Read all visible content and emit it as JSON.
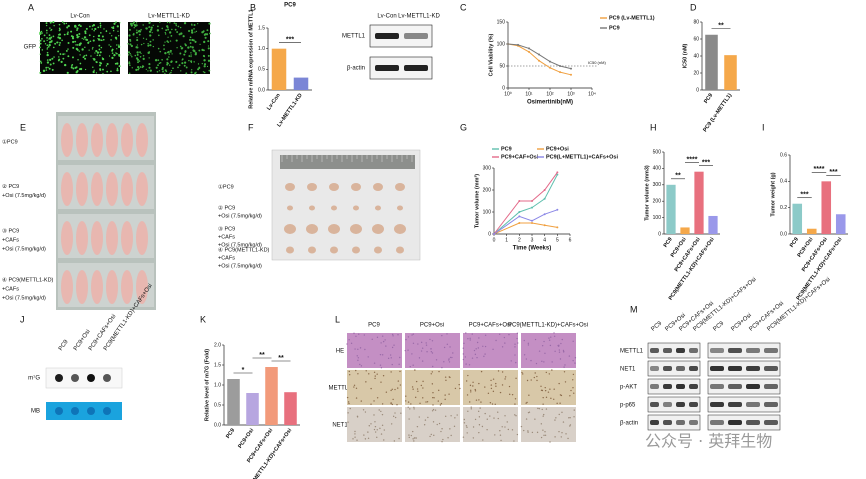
{
  "panel_labels": [
    "A",
    "B",
    "C",
    "D",
    "E",
    "F",
    "G",
    "H",
    "I",
    "J",
    "K",
    "L",
    "M"
  ],
  "panel_a": {
    "columns": [
      "Lv-Con",
      "Lv-METTL1-KD"
    ],
    "row": "GFP"
  },
  "panel_b_blot": {
    "columns": [
      "Lv-Con",
      "Lv-METTL1-KD"
    ],
    "rows": [
      "METTL1",
      "β-actin"
    ]
  },
  "panel_e": {
    "groups": [
      [
        "①PC9"
      ],
      [
        "② PC9",
        "+Osi (7.5mg/kg/d)"
      ],
      [
        "③ PC9",
        "+CAFs",
        "+Osi (7.5mg/kg/d)"
      ],
      [
        "④ PC9(METTL1-KD)",
        "+CAFs",
        "+Osi (7.5mg/kg/d)"
      ]
    ]
  },
  "panel_f": {
    "groups": [
      [
        "①PC9"
      ],
      [
        "② PC9",
        "+Osi (7.5mg/kg/d)"
      ],
      [
        "③ PC9",
        "+CAFs",
        "+Osi (7.5mg/kg/d)"
      ],
      [
        "④ PC9(METTL1-KD)",
        "+CAFs",
        "+Osi (7.5mg/kg/d)"
      ]
    ]
  },
  "panel_j": {
    "columns": [
      "PC9",
      "PC9+Osi",
      "PC9+CAFs+Osi",
      "PC9(METTL1-KD)+CAFs+Osi"
    ],
    "rows": [
      "m⁷G",
      "MB"
    ]
  },
  "panel_l": {
    "columns": [
      "PC9",
      "PC9+Osi",
      "PC9+CAFs+Osi",
      "PC9(METTL1-KD)+CAFs+Osi"
    ],
    "rows": [
      "HE",
      "METTL1",
      "NET1"
    ]
  },
  "panel_m": {
    "columns": [
      "PC9",
      "PC9+Osi",
      "PC9+CAFs+Osi",
      "PC9(METTL1-KD)+CAFs+Osi"
    ],
    "rows": [
      "METTL1",
      "NET1",
      "p-AKT",
      "p-p65",
      "β-actin"
    ]
  },
  "watermark": "公众号 · 英拜生物",
  "chart_data": [
    {
      "type": "bar",
      "title": "PC9",
      "ylabel": "Relative mRNA expression of METTL1",
      "categories": [
        "Lv-Con",
        "Lv-METTL1-KD"
      ],
      "values": [
        1.0,
        0.3
      ],
      "colors": [
        "#f5a84a",
        "#7b86d6"
      ],
      "ylim": [
        0,
        1.5
      ],
      "yticks": [
        {
          "value": 0,
          "label": "0.0"
        },
        {
          "value": 0.5,
          "label": "0.5"
        },
        {
          "value": 1,
          "label": "1.0"
        },
        {
          "value": 1.5,
          "label": "1.5"
        }
      ],
      "significance": [
        "***"
      ]
    },
    {
      "type": "line",
      "xlabel": "Osimertinib(nM)",
      "ylabel": "Cell Viability (%)",
      "x": [
        1,
        3,
        10,
        30,
        100,
        300,
        1000
      ],
      "log_x": true,
      "series": [
        {
          "name": "PC9 (Lv-METTL1)",
          "color": "#f0a040",
          "values": [
            100,
            96,
            82,
            62,
            46,
            36,
            30
          ]
        },
        {
          "name": "PC9",
          "color": "#777777",
          "values": [
            100,
            98,
            90,
            76,
            60,
            50,
            44
          ]
        }
      ],
      "xlim": [
        1,
        10000
      ],
      "xticks": [
        {
          "value": 1,
          "label": "10⁰"
        },
        {
          "value": 10,
          "label": "10¹"
        },
        {
          "value": 100,
          "label": "10²"
        },
        {
          "value": 1000,
          "label": "10³"
        },
        {
          "value": 10000,
          "label": "10⁴"
        }
      ],
      "ylim": [
        0,
        150
      ],
      "yticks": [
        0,
        50,
        100,
        150
      ],
      "reference_line": {
        "value": 50,
        "label": "IC50 (nM)"
      }
    },
    {
      "type": "bar",
      "ylabel": "IC50 (nM)",
      "categories": [
        "PC9",
        "PC9 (Lv-METTL1)"
      ],
      "values": [
        65,
        41
      ],
      "colors": [
        "#8a8a8a",
        "#f5a84a"
      ],
      "ylim": [
        0,
        80
      ],
      "yticks": [
        0,
        20,
        40,
        60,
        80
      ],
      "significance": [
        "**"
      ]
    },
    {
      "type": "line",
      "xlabel": "Time (Weeks)",
      "ylabel": "Tumor volume (mm³)",
      "x": [
        0,
        2,
        3,
        4,
        5
      ],
      "series": [
        {
          "name": "PC9",
          "color": "#5fbfae",
          "values": [
            0,
            100,
            120,
            160,
            270
          ]
        },
        {
          "name": "PC9+Osi",
          "color": "#f0a040",
          "values": [
            0,
            50,
            50,
            40,
            30
          ]
        },
        {
          "name": "PC9+CAF+Osi",
          "color": "#e36a8a",
          "values": [
            0,
            150,
            150,
            200,
            280
          ]
        },
        {
          "name": "PC9(L+METTL1)+CAFs+Osi",
          "color": "#8a86e6",
          "values": [
            0,
            80,
            60,
            90,
            110
          ]
        }
      ],
      "xlim": [
        0,
        6
      ],
      "xticks": [
        0,
        1,
        2,
        3,
        4,
        5,
        6
      ],
      "ylim": [
        0,
        300
      ],
      "yticks": [
        0,
        100,
        200,
        300
      ]
    },
    {
      "type": "bar",
      "ylabel": "Tumor volume (mm3)",
      "categories": [
        "PC9",
        "PC9+Osi",
        "PC9+CAFs+Osi",
        "PC9(METTL1-KD)+CAFs+Osi"
      ],
      "values": [
        300,
        40,
        380,
        110
      ],
      "colors": [
        "#8ccac8",
        "#f5a84a",
        "#e8707e",
        "#9a98ea"
      ],
      "ylim": [
        0,
        500
      ],
      "yticks": [
        0,
        100,
        200,
        300,
        400,
        500
      ],
      "significance": [
        "**",
        "****",
        "***"
      ]
    },
    {
      "type": "bar",
      "ylabel": "Tumor weight (g)",
      "categories": [
        "PC9",
        "PC9+Osi",
        "PC9+CAFs+Osi",
        "PC9(METTL1-KD)+CAFs+Osi"
      ],
      "values": [
        0.23,
        0.04,
        0.4,
        0.15
      ],
      "colors": [
        "#8ccac8",
        "#f5a84a",
        "#e8707e",
        "#9a98ea"
      ],
      "ylim": [
        0,
        0.6
      ],
      "yticks": [
        {
          "value": 0,
          "label": "0.0"
        },
        {
          "value": 0.2,
          "label": "0.2"
        },
        {
          "value": 0.4,
          "label": "0.4"
        },
        {
          "value": 0.6,
          "label": "0.6"
        }
      ],
      "significance": [
        "***",
        "****",
        "***"
      ]
    },
    {
      "type": "bar",
      "ylabel": "Relative level of m7G (Fold)",
      "categories": [
        "PC9",
        "PC9+Osi",
        "PC9+CAFs+Osi",
        "PC9(METTL1-KD)+CAFs+Osi"
      ],
      "values": [
        1.15,
        0.8,
        1.45,
        0.82
      ],
      "colors": [
        "#9c9c9c",
        "#b7a6e0",
        "#f29a7a",
        "#e8707e"
      ],
      "ylim": [
        0,
        2
      ],
      "yticks": [
        {
          "value": 0,
          "label": "0.0"
        },
        {
          "value": 0.5,
          "label": "0.5"
        },
        {
          "value": 1,
          "label": "1.0"
        },
        {
          "value": 1.5,
          "label": "1.5"
        },
        {
          "value": 2,
          "label": "2.0"
        }
      ],
      "significance": [
        "*",
        "**",
        "**"
      ]
    }
  ]
}
